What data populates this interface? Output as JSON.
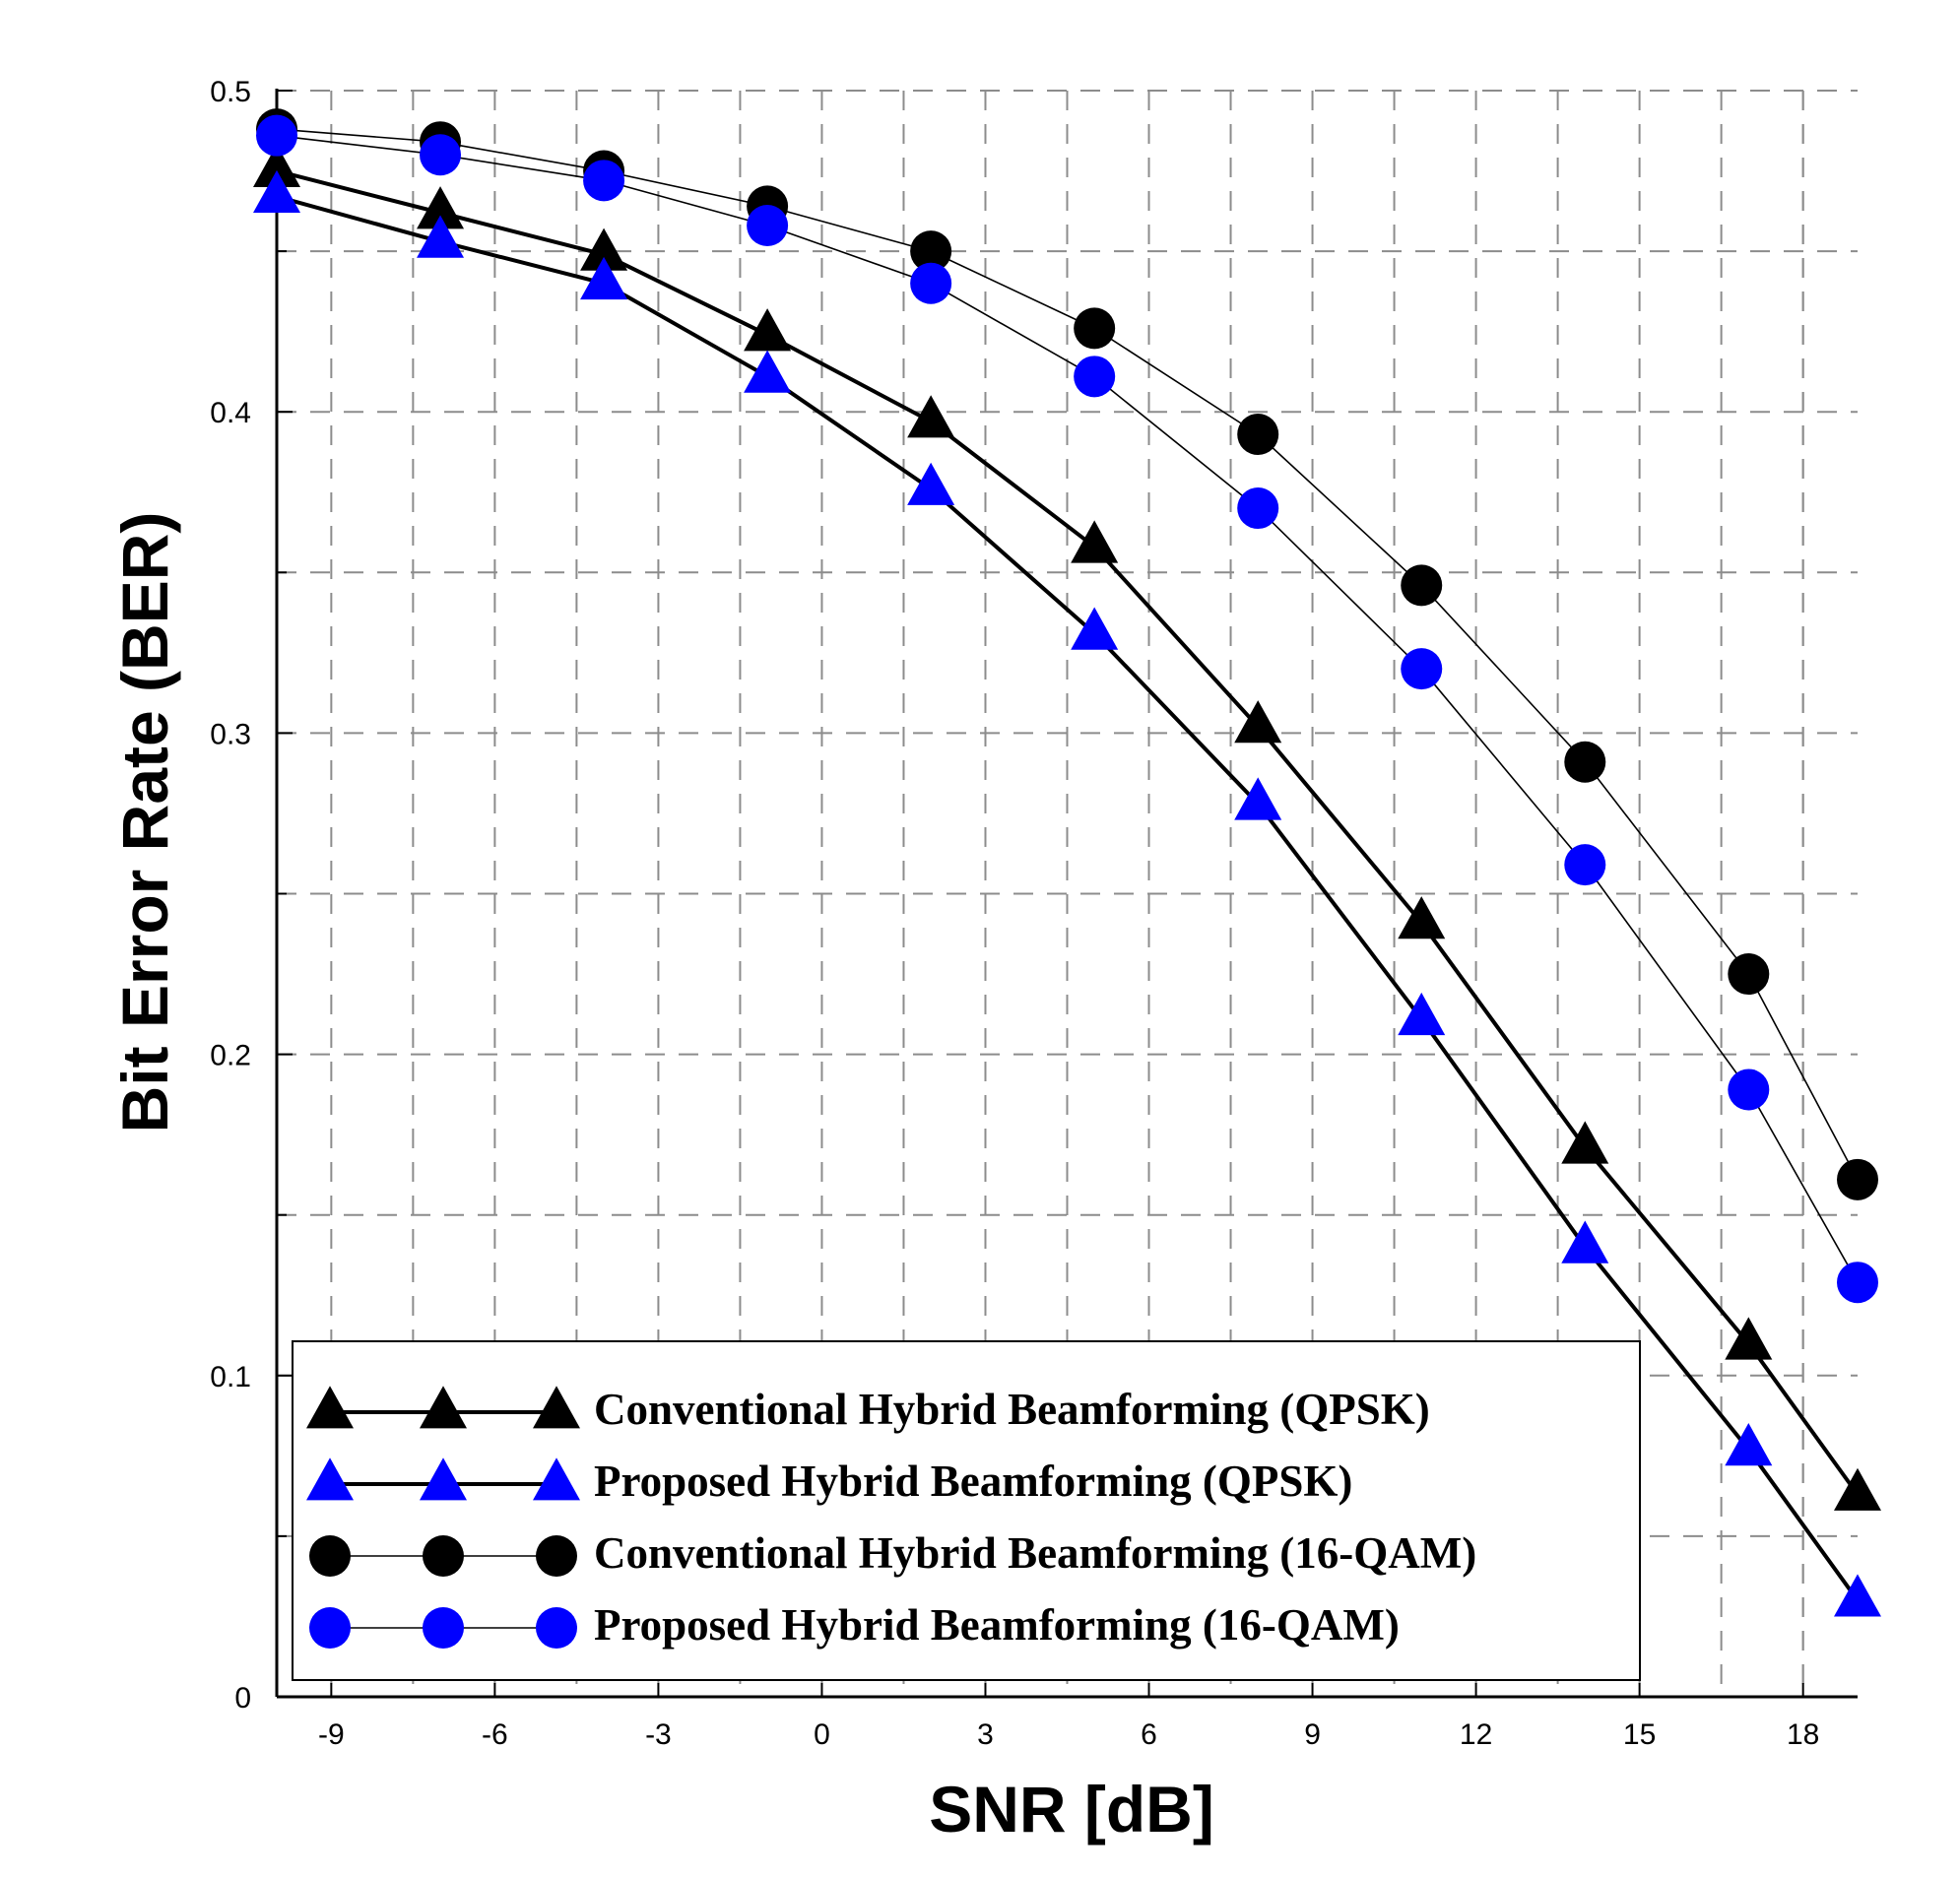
{
  "chart_data": {
    "type": "line",
    "title": "",
    "xlabel": "SNR [dB]",
    "ylabel": "Bit Error Rate (BER)",
    "xlim": [
      -10,
      19
    ],
    "ylim": [
      0,
      0.5
    ],
    "grid": true,
    "x_ticks": [
      -9,
      -6,
      -3,
      0,
      3,
      6,
      9,
      12,
      15,
      18
    ],
    "x_tick_labels": [
      "-9",
      "-6",
      "-3",
      "0",
      "3",
      "6",
      "9",
      "12",
      "15",
      "18"
    ],
    "y_ticks": [
      0,
      0.1,
      0.2,
      0.3,
      0.4,
      0.5
    ],
    "y_tick_labels": [
      "0",
      "0.1",
      "0.2",
      "0.3",
      "0.4",
      "0.5"
    ],
    "y_minor_ticks": [
      0.05,
      0.15,
      0.25,
      0.35,
      0.45
    ],
    "legend_position": "bottom-left",
    "x": [
      -10,
      -7,
      -4,
      -1,
      2,
      5,
      8,
      11,
      14,
      17,
      19
    ],
    "series": [
      {
        "name": "Conventional Hybrid Beamforming (QPSK)",
        "color": "#000000",
        "marker": "triangle",
        "line_weight": "thick",
        "values": [
          0.475,
          0.462,
          0.449,
          0.424,
          0.397,
          0.358,
          0.302,
          0.241,
          0.171,
          0.11,
          0.063
        ]
      },
      {
        "name": "Proposed Hybrid Beamforming (QPSK)",
        "color": "#0000ff",
        "marker": "triangle",
        "line_weight": "thick",
        "values": [
          0.467,
          0.453,
          0.44,
          0.411,
          0.376,
          0.331,
          0.278,
          0.211,
          0.14,
          0.077,
          0.03
        ]
      },
      {
        "name": "Conventional Hybrid Beamforming (16-QAM)",
        "color": "#000000",
        "marker": "circle",
        "line_weight": "thin",
        "values": [
          0.488,
          0.484,
          0.475,
          0.464,
          0.45,
          0.426,
          0.393,
          0.346,
          0.291,
          0.225,
          0.161
        ]
      },
      {
        "name": "Proposed Hybrid Beamforming (16-QAM)",
        "color": "#0000ff",
        "marker": "circle",
        "line_weight": "thin",
        "values": [
          0.486,
          0.48,
          0.472,
          0.458,
          0.44,
          0.411,
          0.37,
          0.32,
          0.259,
          0.189,
          0.129
        ]
      }
    ]
  }
}
